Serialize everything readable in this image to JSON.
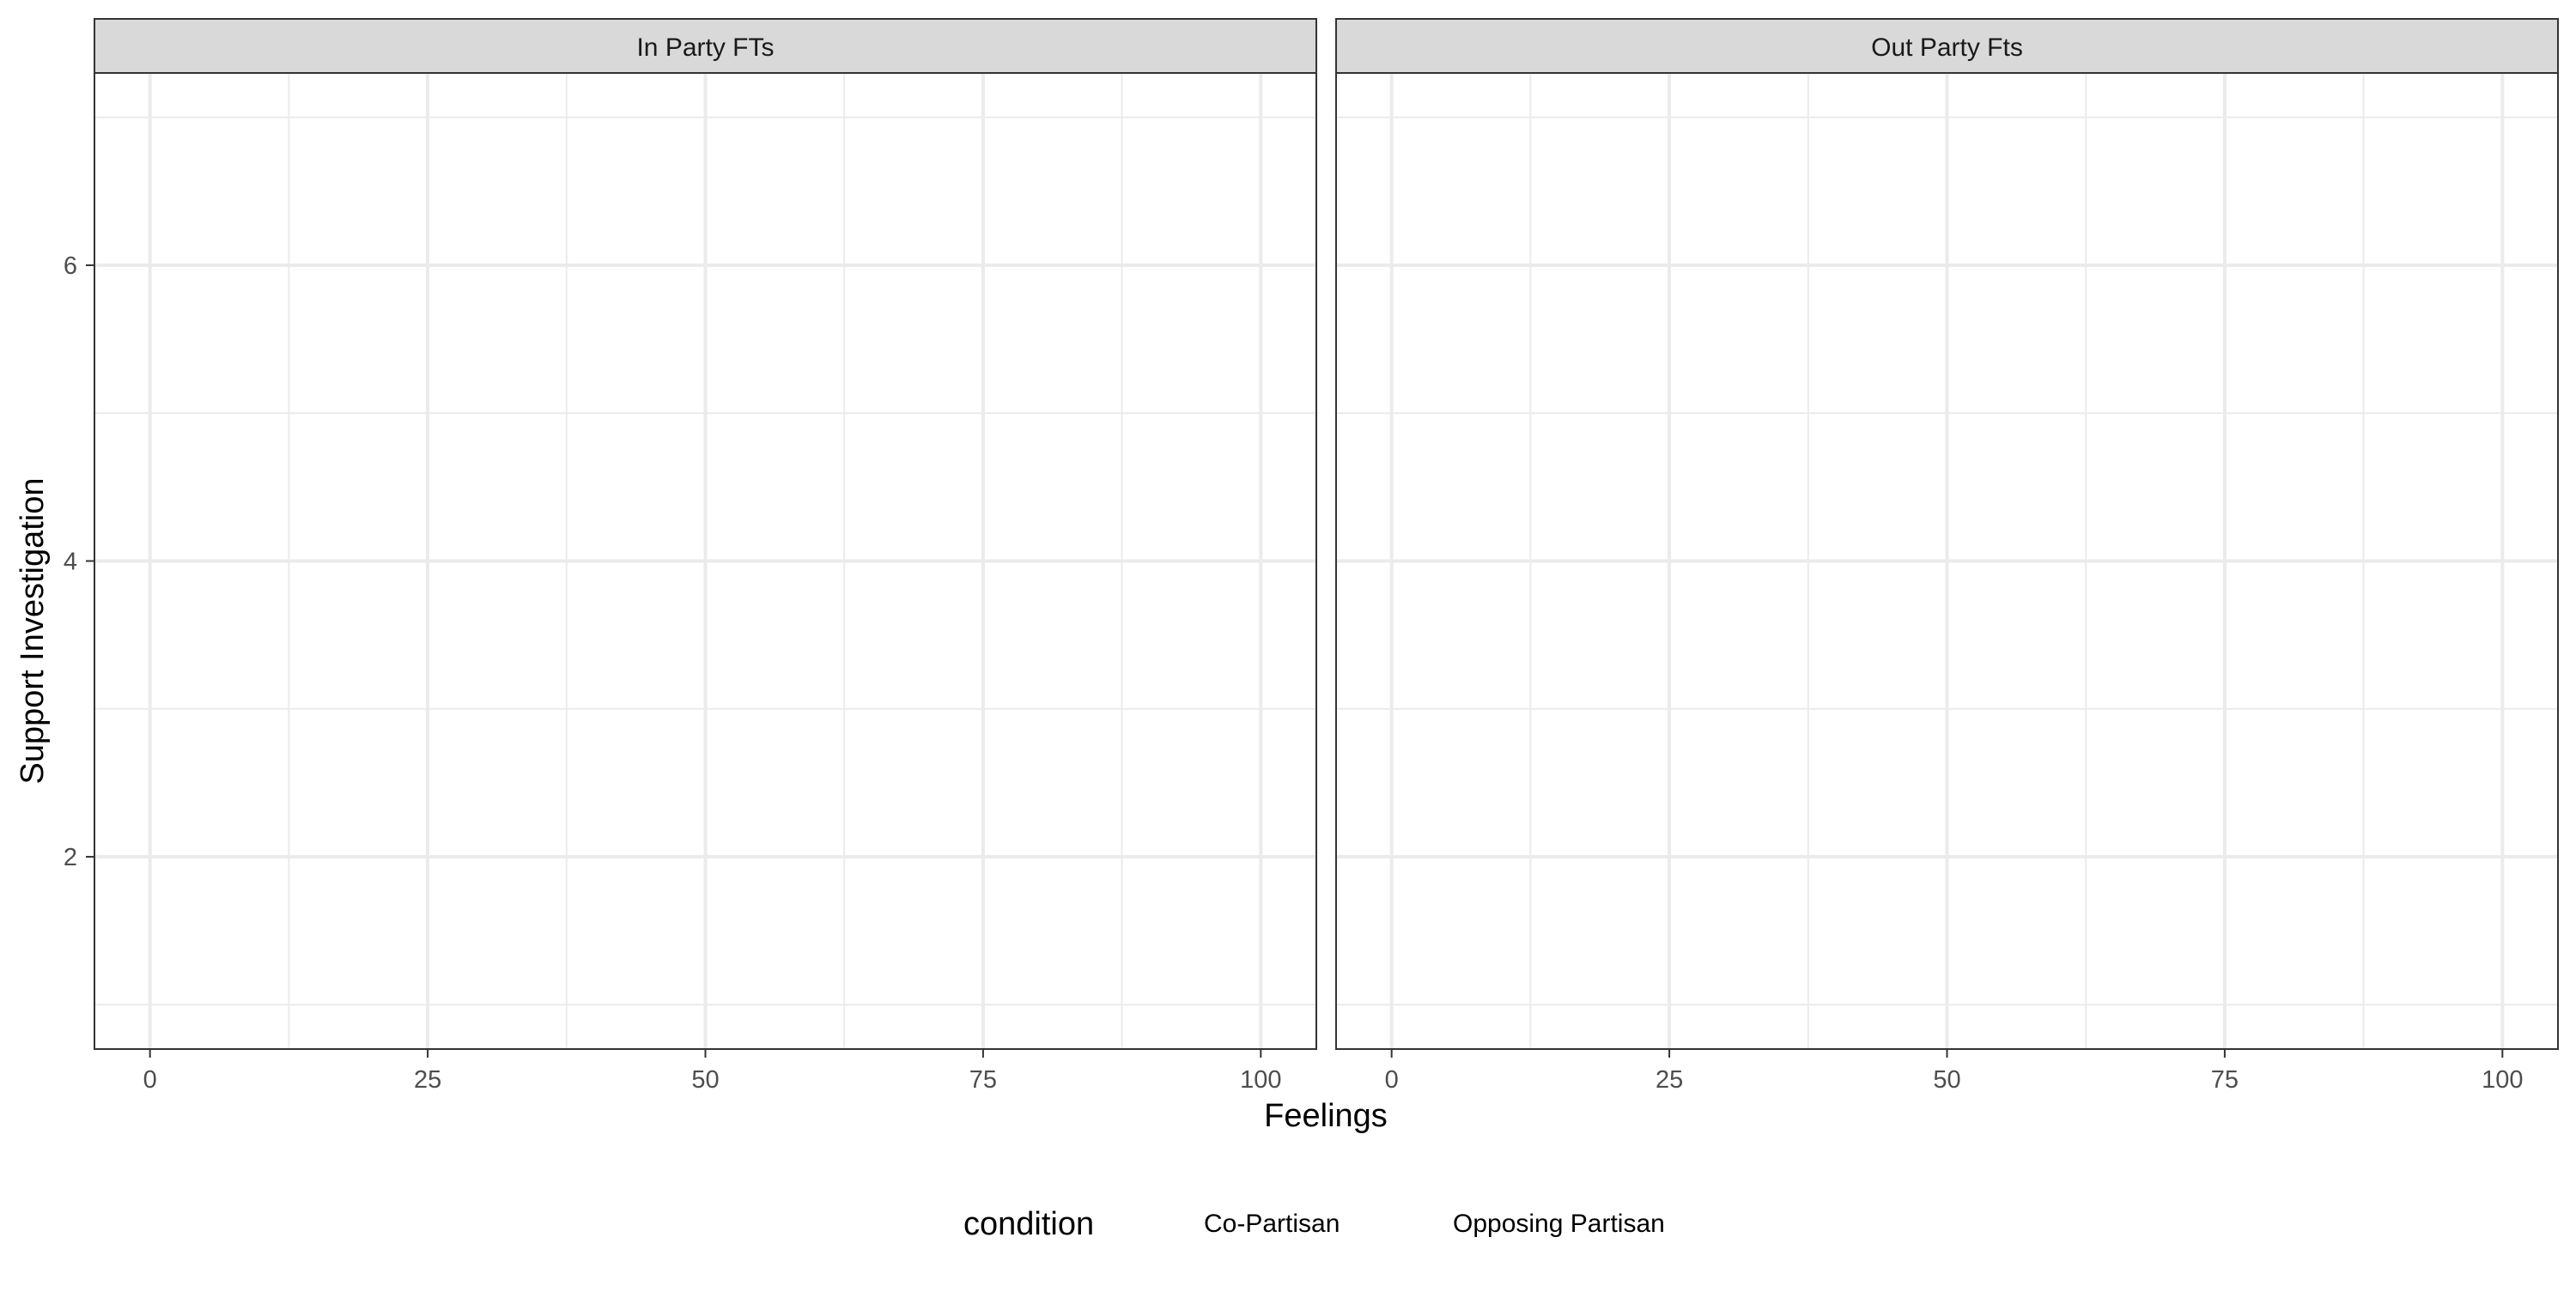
{
  "chart_data": {
    "type": "line",
    "facets": [
      {
        "title": "In Party FTs",
        "series": []
      },
      {
        "title": "Out Party Fts",
        "series": []
      }
    ],
    "xlabel": "Feelings",
    "ylabel": "Support Investigation",
    "xlim": [
      -5,
      105
    ],
    "ylim": [
      0.7,
      7.3
    ],
    "x_ticks": [
      0,
      25,
      50,
      75,
      100
    ],
    "x_tick_labels": [
      "0",
      "25",
      "50",
      "75",
      "100"
    ],
    "y_ticks": [
      2,
      4,
      6
    ],
    "y_tick_labels": [
      "2",
      "4",
      "6"
    ],
    "grid": true,
    "legend": {
      "title": "condition",
      "position": "bottom",
      "entries": [
        "Co-Partisan",
        "Opposing Partisan"
      ]
    }
  }
}
